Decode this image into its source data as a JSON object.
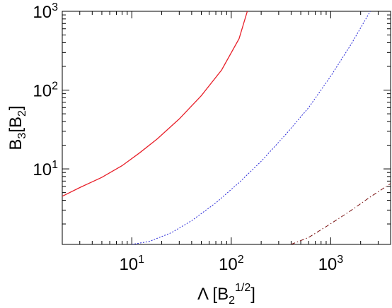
{
  "chart_data": {
    "type": "line",
    "xscale": "log",
    "yscale": "log",
    "xlim": [
      2,
      4000
    ],
    "ylim": [
      1.1,
      1000
    ],
    "xlabel": {
      "main": "Λ [B",
      "sub": "2",
      "sup": "1/2",
      "end": "]"
    },
    "ylabel": {
      "b": "B",
      "sub1": "3",
      "mid": "[B",
      "sub2": "2",
      "end": "]"
    },
    "x_ticks": [
      {
        "base": "10",
        "exp": "1",
        "value": 10
      },
      {
        "base": "10",
        "exp": "2",
        "value": 100
      },
      {
        "base": "10",
        "exp": "3",
        "value": 1000
      }
    ],
    "y_ticks": [
      {
        "base": "10",
        "exp": "1",
        "value": 10
      },
      {
        "base": "10",
        "exp": "2",
        "value": 100
      },
      {
        "base": "10",
        "exp": "3",
        "value": 1000
      }
    ],
    "series": [
      {
        "color": "#e8202a",
        "dash": "solid",
        "points": [
          [
            2,
            4.5
          ],
          [
            3,
            5.8
          ],
          [
            5,
            7.8
          ],
          [
            8,
            11
          ],
          [
            12,
            16
          ],
          [
            18,
            24
          ],
          [
            30,
            43
          ],
          [
            50,
            85
          ],
          [
            80,
            180
          ],
          [
            120,
            450
          ],
          [
            145,
            1000
          ]
        ]
      },
      {
        "color": "#2a2ad8",
        "dash": "dotted",
        "points": [
          [
            10,
            1.1
          ],
          [
            15,
            1.2
          ],
          [
            25,
            1.55
          ],
          [
            40,
            2.2
          ],
          [
            70,
            3.7
          ],
          [
            120,
            6.7
          ],
          [
            200,
            12.5
          ],
          [
            350,
            27
          ],
          [
            600,
            60
          ],
          [
            1000,
            150
          ],
          [
            1600,
            380
          ],
          [
            2500,
            1000
          ]
        ]
      },
      {
        "color": "#7a1010",
        "dash": "dashdot",
        "points": [
          [
            400,
            1.1
          ],
          [
            600,
            1.35
          ],
          [
            900,
            1.85
          ],
          [
            1500,
            2.8
          ],
          [
            2500,
            4.4
          ],
          [
            4000,
            6.5
          ]
        ]
      }
    ]
  }
}
